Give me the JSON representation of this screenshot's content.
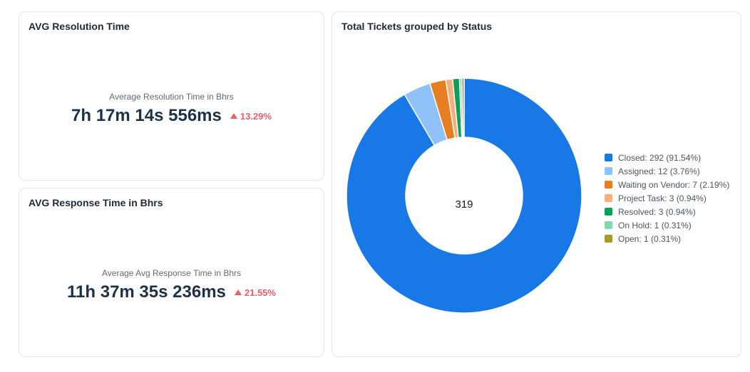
{
  "resolution_card": {
    "title": "AVG Resolution Time",
    "metric_label": "Average Resolution Time in Bhrs",
    "value": "7h 17m 14s 556ms",
    "delta": "13.29%",
    "delta_color": "#e5606b"
  },
  "response_card": {
    "title": "AVG Response Time in Bhrs",
    "metric_label": "Average Avg Response Time in Bhrs",
    "value": "11h 37m 35s 236ms",
    "delta": "21.55%",
    "delta_color": "#e5606b"
  },
  "status_card": {
    "title": "Total Tickets grouped by Status",
    "total": "319",
    "chart_data": {
      "type": "pie",
      "donut": true,
      "title": "Total Tickets grouped by Status",
      "center_label": "319",
      "slices": [
        {
          "label": "Closed",
          "value": 292,
          "percent": 91.54,
          "color": "#1778e6",
          "legend": "Closed: 292 (91.54%)"
        },
        {
          "label": "Assigned",
          "value": 12,
          "percent": 3.76,
          "color": "#8fc1fb",
          "legend": "Assigned: 12 (3.76%)"
        },
        {
          "label": "Waiting on Vendor",
          "value": 7,
          "percent": 2.19,
          "color": "#e67e22",
          "legend": "Waiting on Vendor: 7 (2.19%)"
        },
        {
          "label": "Project Task",
          "value": 3,
          "percent": 0.94,
          "color": "#f5b07b",
          "legend": "Project Task: 3 (0.94%)"
        },
        {
          "label": "Resolved",
          "value": 3,
          "percent": 0.94,
          "color": "#0f9d58",
          "legend": "Resolved: 3 (0.94%)"
        },
        {
          "label": "On Hold",
          "value": 1,
          "percent": 0.31,
          "color": "#82d9b0",
          "legend": "On Hold: 1 (0.31%)"
        },
        {
          "label": "Open",
          "value": 1,
          "percent": 0.31,
          "color": "#a39a2a",
          "legend": "Open: 1 (0.31%)"
        }
      ],
      "legend_position": "right"
    }
  }
}
